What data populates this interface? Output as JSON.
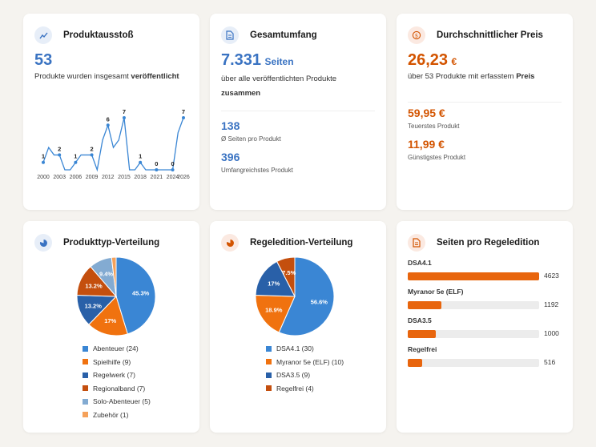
{
  "colors": {
    "accent_blue": "#3a73c2",
    "accent_orange": "#e8650d",
    "background": "#f5f3ef"
  },
  "card_output": {
    "title": "Produktausstoß",
    "icon": "line-chart-icon",
    "count": "53",
    "desc_prefix": "Produkte wurden insgesamt",
    "desc_bold": "veröffentlicht"
  },
  "card_pages": {
    "title": "Gesamtumfang",
    "icon": "document-icon",
    "total": "7.331",
    "total_unit": "Seiten",
    "desc_prefix": "über alle veröffentlichten Produkte",
    "desc_bold": "zusammen",
    "avg_value": "138",
    "avg_label": "Ø Seiten pro Produkt",
    "max_value": "396",
    "max_label": "Umfangreichstes Produkt"
  },
  "card_price": {
    "title": "Durchschnittlicher Preis",
    "icon": "coin-icon",
    "avg_price": "26,23",
    "currency": "€",
    "desc_prefix": "über 53 Produkte mit erfasstem",
    "desc_bold": "Preis",
    "max_price": "59,95 €",
    "max_label": "Teuerstes Produkt",
    "min_price": "11,99 €",
    "min_label": "Günstigstes Produkt"
  },
  "card_type": {
    "title": "Produkttyp-Verteilung",
    "icon": "pie-chart-icon",
    "legend": [
      "Abenteuer (24)",
      "Spielhilfe (9)",
      "Regelwerk (7)",
      "Regionalband (7)",
      "Solo-Abenteuer (5)",
      "Zubehör (1)"
    ]
  },
  "card_edition": {
    "title": "Regeledition-Verteilung",
    "icon": "pie-chart-icon",
    "legend": [
      "DSA4.1 (30)",
      "Myranor 5e (ELF) (10)",
      "DSA3.5 (9)",
      "Regelfrei (4)"
    ]
  },
  "card_pages_edition": {
    "title": "Seiten pro Regeledition",
    "icon": "document-icon"
  },
  "chart_data": [
    {
      "type": "line",
      "title": "",
      "x_tick_labels": [
        "2000",
        "2003",
        "2006",
        "2009",
        "2012",
        "2015",
        "2018",
        "2021",
        "2024",
        "2026"
      ],
      "x": [
        2000,
        2001,
        2002,
        2003,
        2004,
        2005,
        2006,
        2007,
        2008,
        2009,
        2010,
        2011,
        2012,
        2013,
        2014,
        2015,
        2016,
        2017,
        2018,
        2019,
        2020,
        2021,
        2022,
        2023,
        2024,
        2025,
        2026
      ],
      "values": [
        1,
        3,
        2,
        2,
        0,
        0,
        1,
        2,
        2,
        2,
        0,
        4,
        6,
        3,
        4,
        7,
        0,
        0,
        1,
        0,
        0,
        0,
        0,
        0,
        0,
        5,
        7
      ],
      "data_labels": [
        {
          "x": 2000,
          "label": "1"
        },
        {
          "x": 2003,
          "label": "2"
        },
        {
          "x": 2006,
          "label": "1"
        },
        {
          "x": 2009,
          "label": "2"
        },
        {
          "x": 2012,
          "label": "6"
        },
        {
          "x": 2015,
          "label": "7"
        },
        {
          "x": 2018,
          "label": "1"
        },
        {
          "x": 2021,
          "label": "0"
        },
        {
          "x": 2024,
          "label": "0"
        },
        {
          "x": 2026,
          "label": "7"
        }
      ],
      "ylim": [
        0,
        7
      ],
      "grid": false,
      "color": "#3a86d4"
    },
    {
      "type": "pie",
      "title": "Produkttyp-Verteilung",
      "categories": [
        "Abenteuer",
        "Spielhilfe",
        "Regelwerk",
        "Regionalband",
        "Solo-Abenteuer",
        "Zubehör"
      ],
      "values": [
        24,
        9,
        7,
        7,
        5,
        1
      ],
      "percent_labels": [
        "45.3%",
        "17%",
        "13.2%",
        "13.2%",
        "9.4%",
        ""
      ],
      "colors": [
        "#3a86d4",
        "#f0720f",
        "#2960a8",
        "#c44f0e",
        "#83abd2",
        "#f5a15a"
      ]
    },
    {
      "type": "pie",
      "title": "Regeledition-Verteilung",
      "categories": [
        "DSA4.1",
        "Myranor 5e (ELF)",
        "DSA3.5",
        "Regelfrei"
      ],
      "values": [
        30,
        10,
        9,
        4
      ],
      "percent_labels": [
        "56.6%",
        "18.9%",
        "17%",
        "7.5%"
      ],
      "colors": [
        "#3a86d4",
        "#f0720f",
        "#2960a8",
        "#c44f0e"
      ]
    },
    {
      "type": "bar",
      "orientation": "horizontal",
      "title": "Seiten pro Regeledition",
      "categories": [
        "DSA4.1",
        "Myranor 5e (ELF)",
        "DSA3.5",
        "Regelfrei"
      ],
      "values": [
        4623,
        1192,
        1000,
        516
      ],
      "value_labels": [
        "4623",
        "1192",
        "1000",
        "516"
      ],
      "xlim": [
        0,
        4623
      ],
      "color": "#e8650d"
    }
  ]
}
